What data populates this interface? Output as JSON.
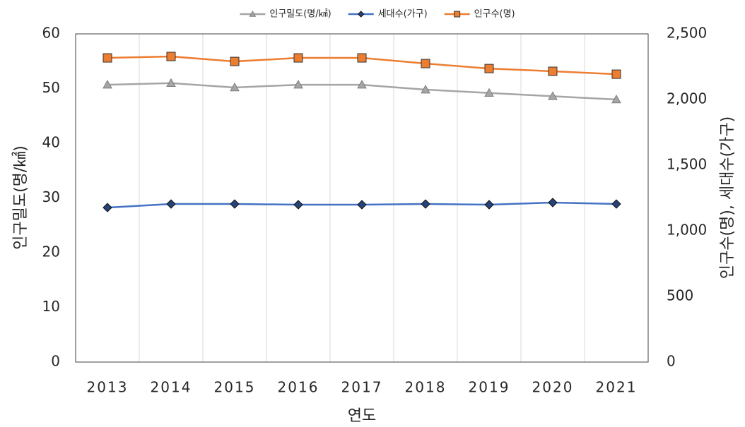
{
  "chart_data": {
    "type": "line",
    "categories": [
      "2013",
      "2014",
      "2015",
      "2016",
      "2017",
      "2018",
      "2019",
      "2020",
      "2021"
    ],
    "series": [
      {
        "name": "인구밀도(명/㎢)",
        "color": "#a5a5a5",
        "marker": "triangle",
        "axis": "y",
        "values": [
          50.7,
          51.0,
          50.2,
          50.7,
          50.7,
          49.8,
          49.2,
          48.6,
          48.0
        ]
      },
      {
        "name": "세대수(가구)",
        "color": "#4472c4",
        "marker": "diamond",
        "axis": "y2",
        "values": [
          1177,
          1204,
          1204,
          1199,
          1199,
          1204,
          1199,
          1215,
          1204
        ]
      },
      {
        "name": "인구수(명)",
        "color": "#ed7d31",
        "marker": "square",
        "axis": "y2",
        "values": [
          2317,
          2328,
          2290,
          2317,
          2317,
          2274,
          2236,
          2215,
          2193
        ]
      }
    ],
    "ylabel": "인구밀도(명/㎢)",
    "y2label": "인구수(명), 세대수(가구)",
    "xlabel": "연도",
    "ylim": [
      0,
      60
    ],
    "yticks": [
      0,
      10,
      20,
      30,
      40,
      50,
      60
    ],
    "y2lim": [
      0,
      2500
    ],
    "y2ticks": [
      0,
      500,
      {
        "value": 1000,
        "label": "1,000"
      },
      {
        "value": 1500,
        "label": "1,500"
      },
      {
        "value": 2000,
        "label": "2,000"
      },
      {
        "value": 2500,
        "label": "2,500"
      }
    ],
    "grid": "x",
    "legend": "top"
  }
}
